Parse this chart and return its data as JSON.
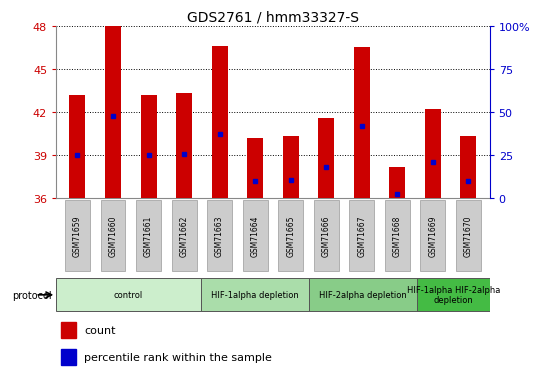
{
  "title": "GDS2761 / hmm33327-S",
  "samples": [
    "GSM71659",
    "GSM71660",
    "GSM71661",
    "GSM71662",
    "GSM71663",
    "GSM71664",
    "GSM71665",
    "GSM71666",
    "GSM71667",
    "GSM71668",
    "GSM71669",
    "GSM71670"
  ],
  "bar_values": [
    43.2,
    48.0,
    43.2,
    43.3,
    46.6,
    40.2,
    40.3,
    41.6,
    46.5,
    38.2,
    42.2,
    40.3
  ],
  "blue_values": [
    39.0,
    41.7,
    39.0,
    39.1,
    40.5,
    37.2,
    37.3,
    38.2,
    41.0,
    36.3,
    38.5,
    37.2
  ],
  "ymin": 36,
  "ymax": 48,
  "yticks": [
    36,
    39,
    42,
    45,
    48
  ],
  "right_ytick_labels": [
    "0",
    "25",
    "50",
    "75",
    "100%"
  ],
  "bar_color": "#cc0000",
  "blue_color": "#0000cc",
  "protocol_groups": [
    {
      "label": "control",
      "start": 0,
      "end": 3,
      "color": "#cceecc"
    },
    {
      "label": "HIF-1alpha depletion",
      "start": 4,
      "end": 6,
      "color": "#aaddaa"
    },
    {
      "label": "HIF-2alpha depletion",
      "start": 7,
      "end": 9,
      "color": "#88cc88"
    },
    {
      "label": "HIF-1alpha HIF-2alpha\ndepletion",
      "start": 10,
      "end": 11,
      "color": "#44bb44"
    }
  ],
  "left_axis_color": "#cc0000",
  "right_axis_color": "#0000cc",
  "tick_bg_color": "#cccccc",
  "plot_bg_color": "#ffffff",
  "fig_bg_color": "#ffffff"
}
